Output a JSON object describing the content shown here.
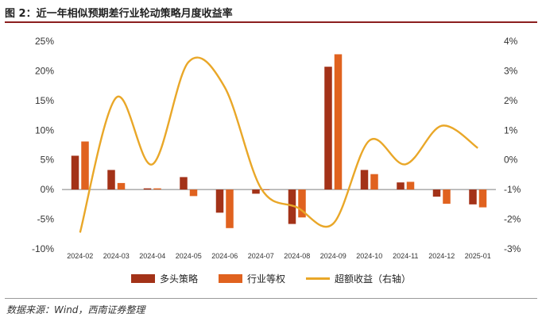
{
  "title": "图 2：近一年相似预期差行业轮动策略月度收益率",
  "source": "数据来源：Wind，西南证券整理",
  "colors": {
    "series1": "#a33218",
    "series2": "#e0621f",
    "line": "#e9a728",
    "rule": "#8b1e1e"
  },
  "chart_data": {
    "type": "bar",
    "categories": [
      "2024-02",
      "2024-03",
      "2024-04",
      "2024-05",
      "2024-06",
      "2024-07",
      "2024-08",
      "2024-09",
      "2024-10",
      "2024-11",
      "2024-12",
      "2025-01"
    ],
    "series": [
      {
        "name": "多头策略",
        "type": "bar",
        "axis": "left",
        "values": [
          5.7,
          3.3,
          0.2,
          2.1,
          -3.9,
          -0.7,
          -5.8,
          20.7,
          3.3,
          1.2,
          -1.2,
          -2.5
        ]
      },
      {
        "name": "行业等权",
        "type": "bar",
        "axis": "left",
        "values": [
          8.1,
          1.1,
          0.2,
          -1.1,
          -6.5,
          0.0,
          -4.7,
          22.8,
          2.6,
          1.3,
          -2.4,
          -3.0
        ]
      },
      {
        "name": "超额收益（右轴）",
        "type": "line",
        "axis": "right",
        "values": [
          -2.45,
          2.1,
          -0.15,
          3.3,
          2.45,
          -0.95,
          -1.6,
          -2.15,
          0.65,
          -0.15,
          1.15,
          0.4
        ]
      }
    ],
    "ylim_left": [
      -10,
      25
    ],
    "yticks_left": [
      "-10%",
      "-5%",
      "0%",
      "5%",
      "10%",
      "15%",
      "20%",
      "25%"
    ],
    "ylim_right": [
      -3,
      4
    ],
    "yticks_right": [
      "-3%",
      "-2%",
      "-1%",
      "0%",
      "1%",
      "2%",
      "3%",
      "4%"
    ],
    "grid": false,
    "legend_position": "bottom"
  }
}
